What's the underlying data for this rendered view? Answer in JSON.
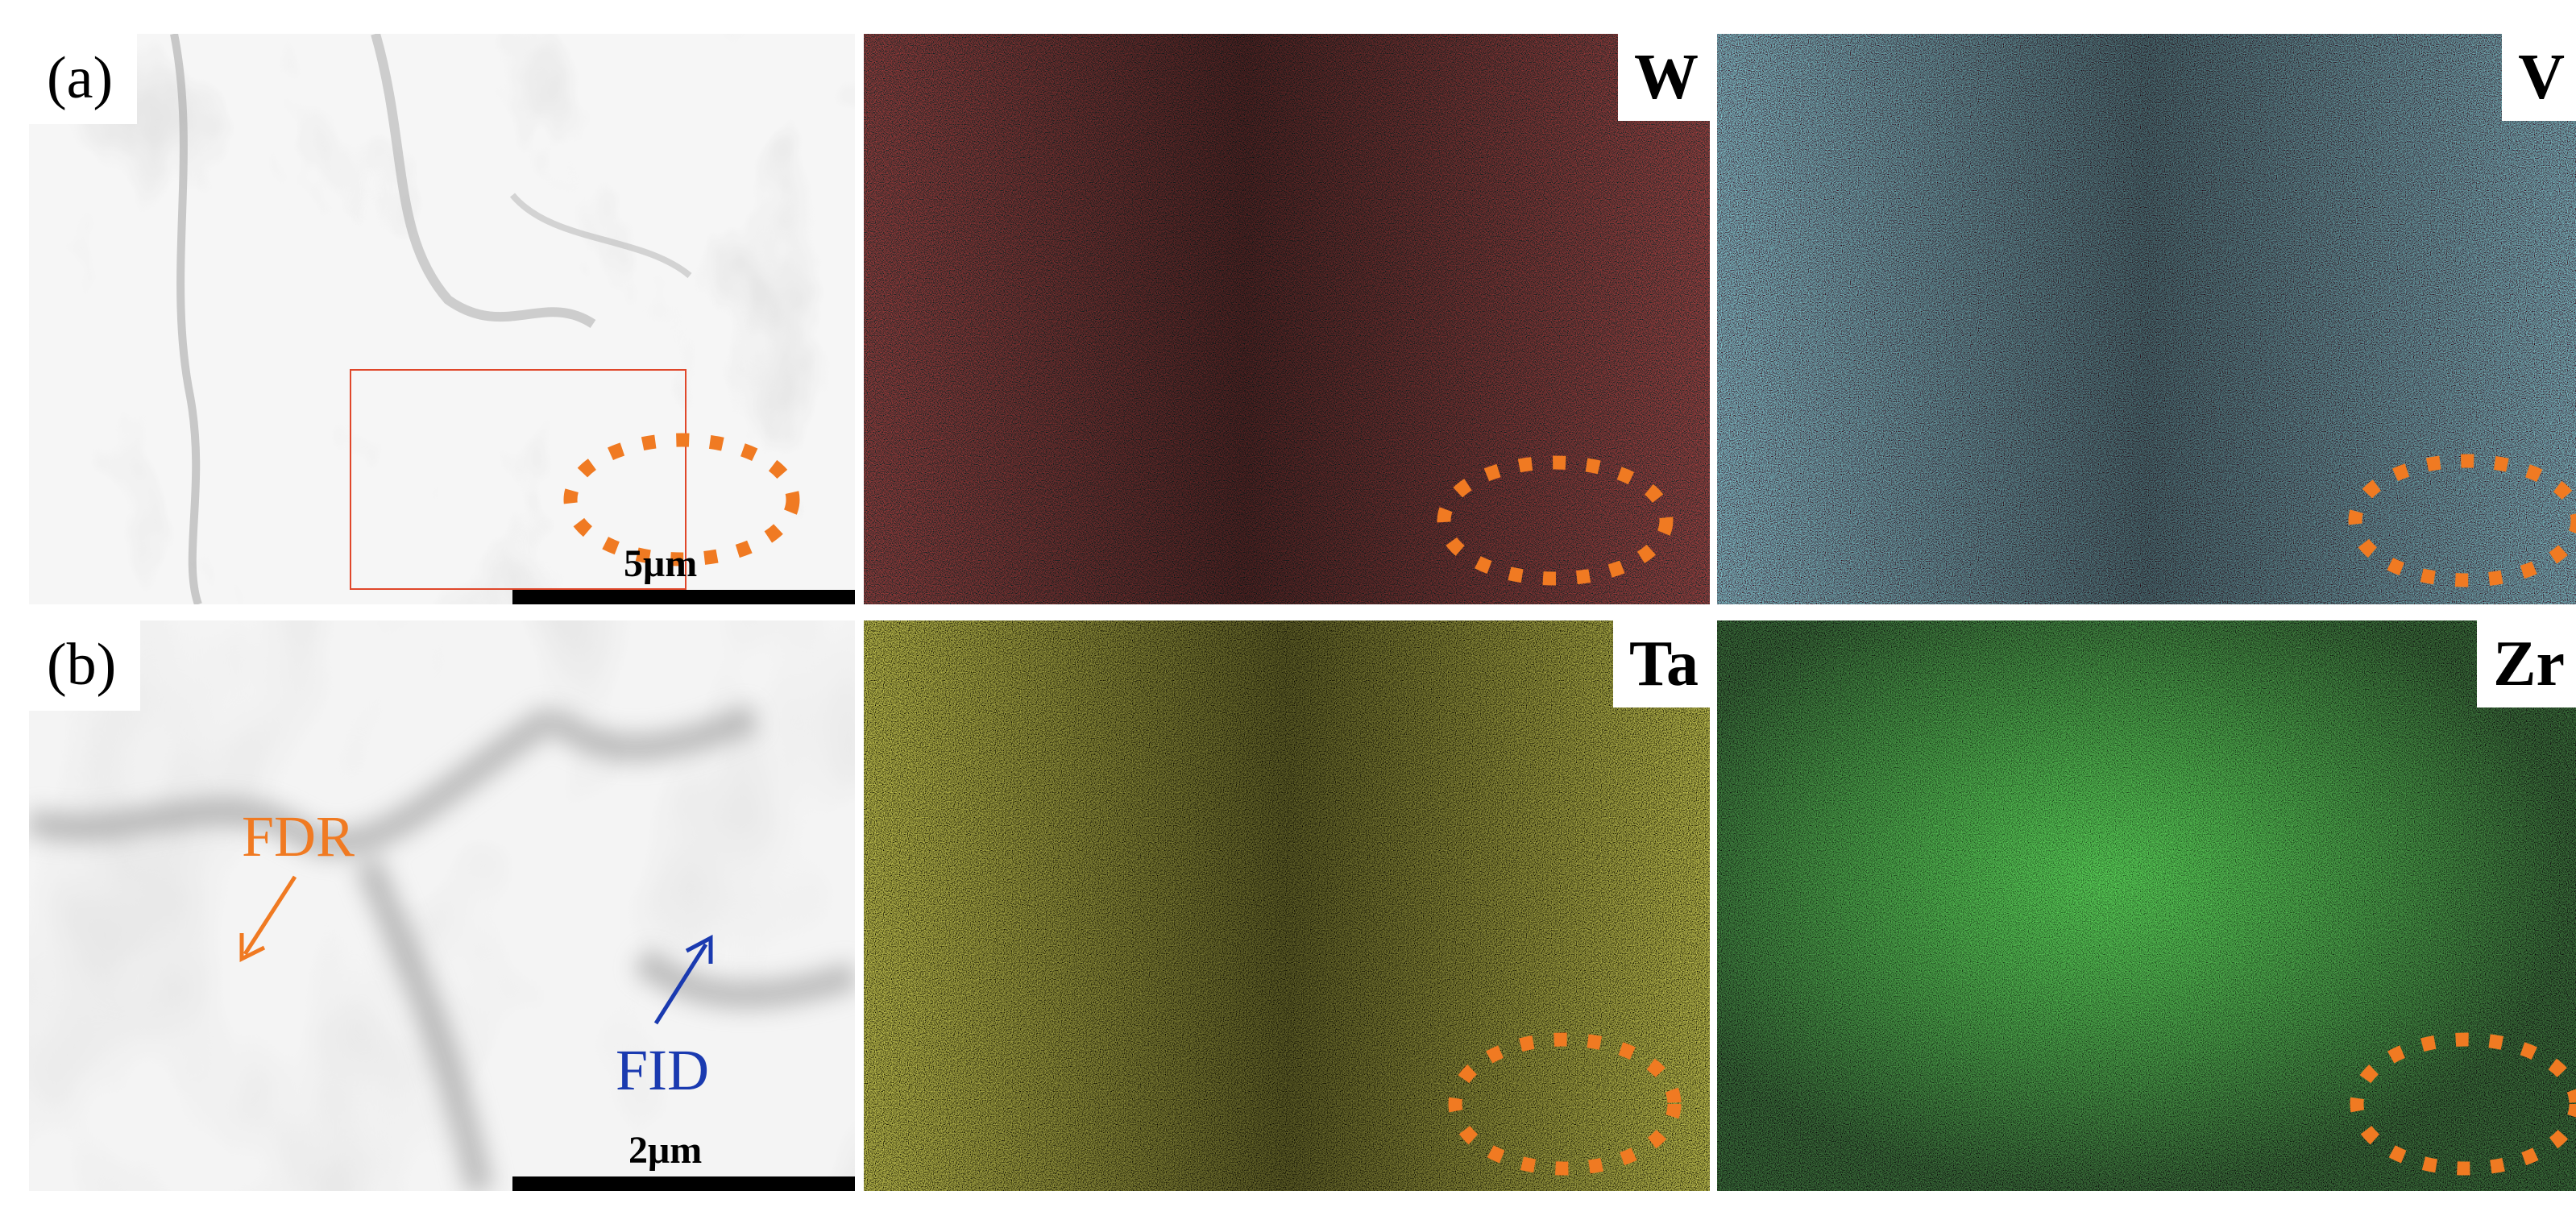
{
  "panels": {
    "a_label": "(a)",
    "b_label": "(b)"
  },
  "maps": {
    "w": "W",
    "v": "V",
    "ta": "Ta",
    "zr": "Zr"
  },
  "scalebars": {
    "a": "5μm",
    "b": "2μm"
  },
  "annotations": {
    "fdr": "FDR",
    "fid": "FID"
  },
  "colors": {
    "w_map": "#e0221c",
    "v_map": "#3fd8e6",
    "ta_map": "#e4e020",
    "zr_map": "#3ee03a",
    "dotted_ellipse": "#f07a22",
    "fdr_text": "#f07a22",
    "fid_text": "#1a3ab0",
    "roi_box": "#e0472a"
  }
}
